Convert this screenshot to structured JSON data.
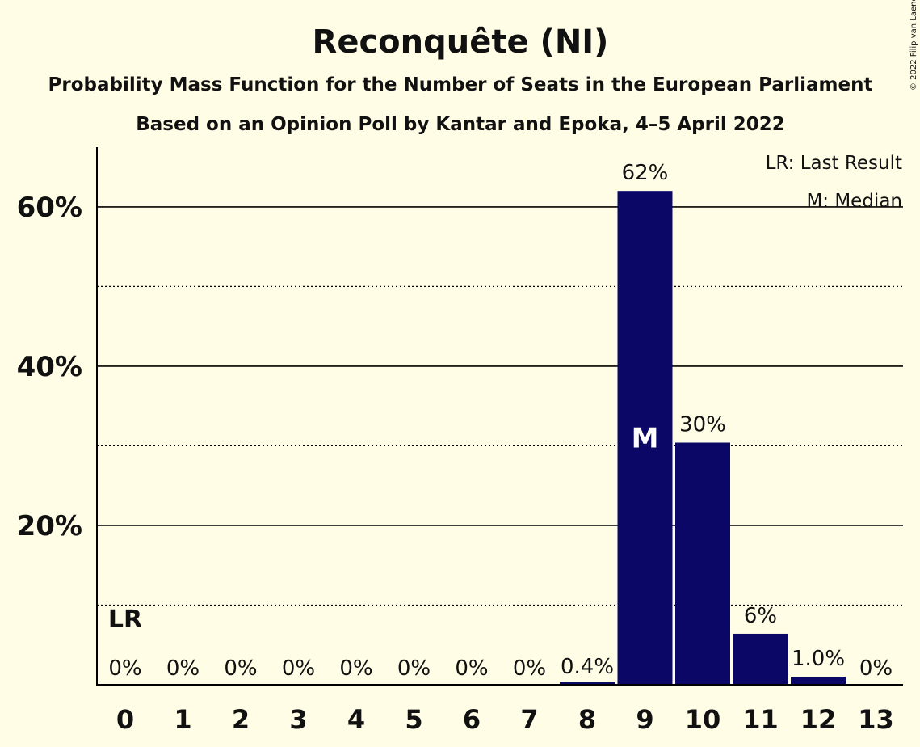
{
  "chart_data": {
    "type": "bar",
    "title": "Reconquête (NI)",
    "subtitle": "Probability Mass Function for the Number of Seats in the European Parliament",
    "subtitle2": "Based on an Opinion Poll by Kantar and Epoka, 4–5 April 2022",
    "copyright": "© 2022 Filip van Laenen",
    "categories": [
      "0",
      "1",
      "2",
      "3",
      "4",
      "5",
      "6",
      "7",
      "8",
      "9",
      "10",
      "11",
      "12",
      "13"
    ],
    "values": [
      0,
      0,
      0,
      0,
      0,
      0,
      0,
      0,
      0.4,
      62,
      30.4,
      6.4,
      1.0,
      0
    ],
    "data_labels": [
      "0%",
      "0%",
      "0%",
      "0%",
      "0%",
      "0%",
      "0%",
      "0%",
      "0.4%",
      "62%",
      "30%",
      "6%",
      "1.0%",
      "0%"
    ],
    "y_ticks": [
      {
        "value": 20,
        "label": "20%"
      },
      {
        "value": 40,
        "label": "40%"
      },
      {
        "value": 60,
        "label": "60%"
      }
    ],
    "y_minor_ticks": [
      10,
      30,
      50
    ],
    "ylim": [
      0,
      67.5
    ],
    "bar_color": "#0a0766",
    "background": "#fffde6",
    "last_result": {
      "index": 0,
      "label": "LR"
    },
    "median": {
      "index": 9,
      "label": "M"
    },
    "legend": {
      "position": "top-right",
      "entries": [
        "LR: Last Result",
        "M: Median"
      ]
    }
  }
}
